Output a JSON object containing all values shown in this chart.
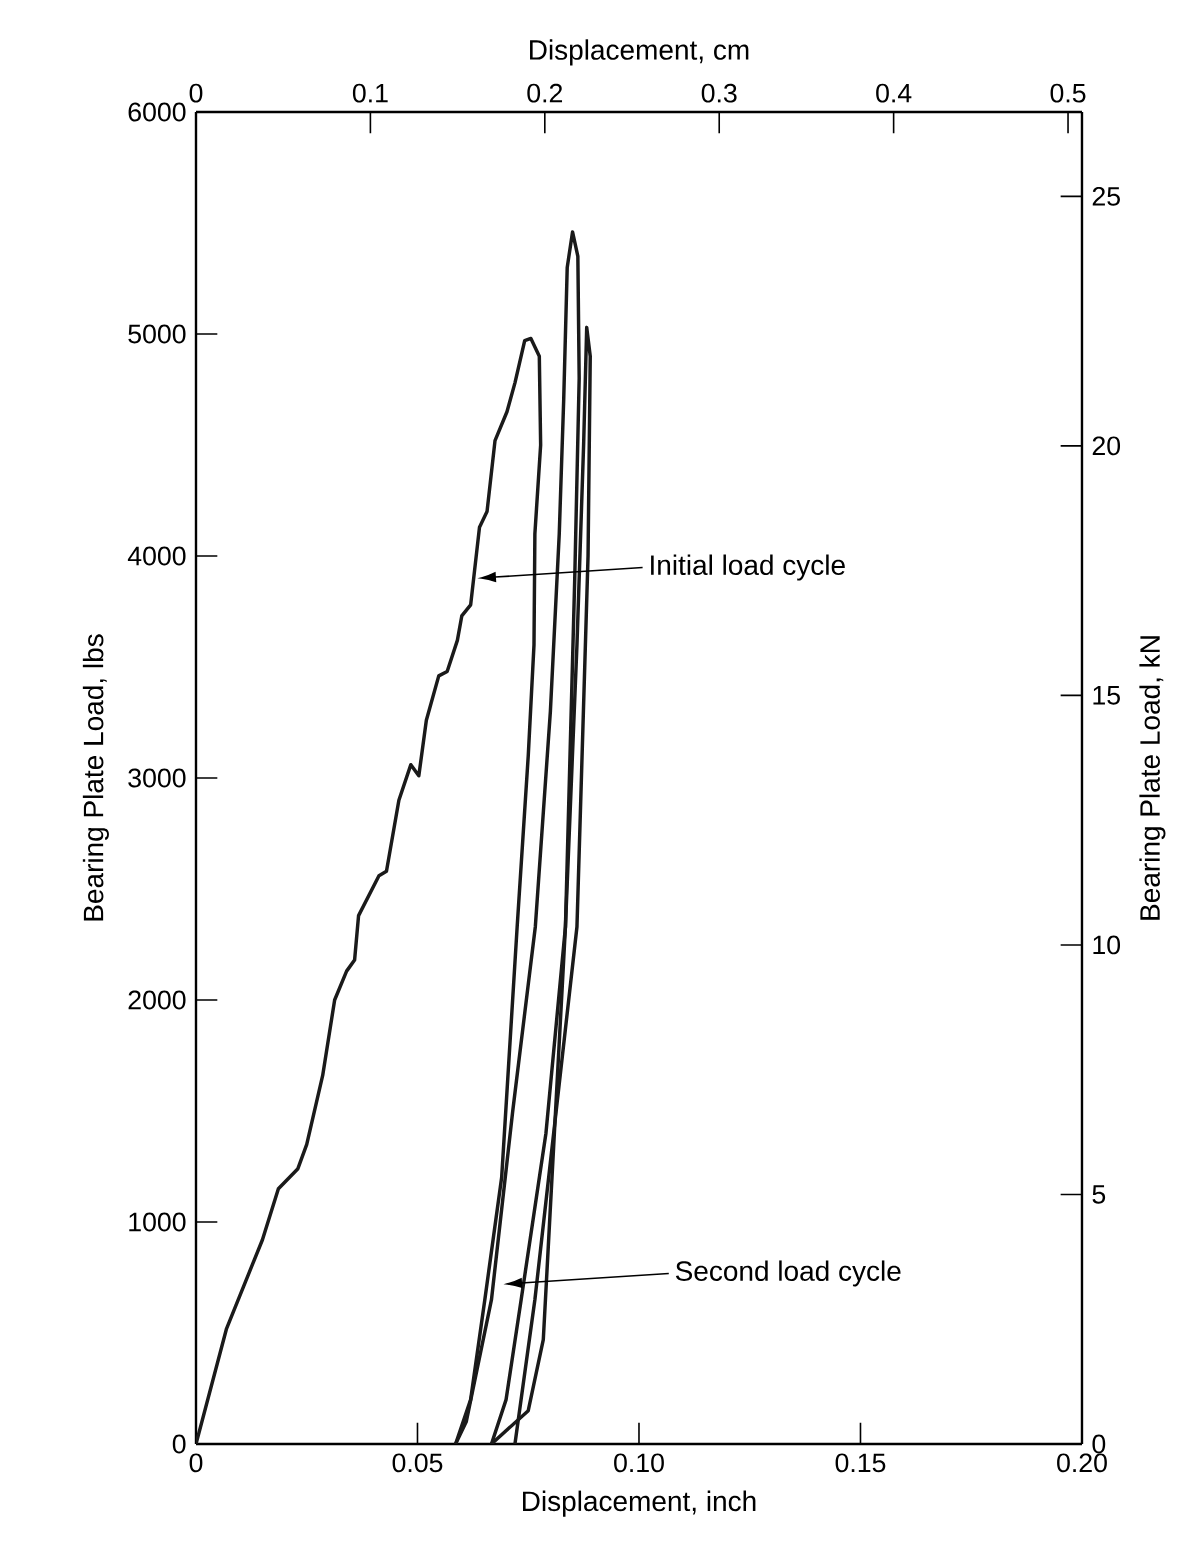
{
  "chart_data": {
    "type": "line",
    "xlabel": "Displacement, inch",
    "ylabel": "Bearing Plate Load, lbs",
    "x2label": "Displacement, cm",
    "y2label": "Bearing Plate Load, kN",
    "xlim": [
      0,
      0.2
    ],
    "xticks": [
      0,
      0.05,
      {
        "value": 0.1,
        "label": "0.10"
      },
      0.15,
      {
        "value": 0.2,
        "label": "0.20"
      }
    ],
    "ylim": [
      0,
      6000
    ],
    "yticks": [
      0,
      1000,
      2000,
      3000,
      4000,
      5000,
      6000
    ],
    "x2lim": [
      0,
      0.508
    ],
    "x2ticks": [
      0,
      0.1,
      0.2,
      0.3,
      0.4,
      0.5
    ],
    "y2lim": [
      0,
      26.69
    ],
    "y2ticks": [
      0,
      5,
      10,
      15,
      20,
      25
    ],
    "grid": false,
    "marker": "none",
    "line_style": "solid",
    "series": [
      {
        "color": "#1a1a1a",
        "x": [
          0,
          0.0069,
          0.015,
          0.0186,
          0.023,
          0.025,
          0.0286,
          0.0313,
          0.034,
          0.0358,
          0.0367,
          0.0413,
          0.043,
          0.0458,
          0.0485,
          0.0503,
          0.052,
          0.0548,
          0.0567,
          0.059,
          0.06,
          0.062,
          0.064,
          0.0657,
          0.0675,
          0.0702,
          0.072,
          0.0742,
          0.0756,
          0.0775,
          0.0778,
          0.0765,
          0.0763,
          0.075,
          0.0725,
          0.069,
          0.0652,
          0.062,
          0.0586
        ],
        "values": [
          0,
          520,
          920,
          1150,
          1240,
          1350,
          1660,
          2000,
          2130,
          2180,
          2380,
          2560,
          2580,
          2900,
          3060,
          3010,
          3260,
          3460,
          3480,
          3620,
          3730,
          3780,
          4130,
          4200,
          4520,
          4650,
          4780,
          4970,
          4980,
          4900,
          4500,
          4100,
          3600,
          3100,
          2330,
          1200,
          650,
          200,
          0
        ]
      },
      {
        "color": "#1a1a1a",
        "x": [
          0.0586,
          0.061,
          0.0667,
          0.0715,
          0.0766,
          0.08,
          0.082,
          0.083,
          0.0838,
          0.085,
          0.0862,
          0.0865,
          0.0855,
          0.0834,
          0.0784,
          0.075,
          0.0667
        ],
        "values": [
          0,
          100,
          650,
          1500,
          2330,
          3300,
          4100,
          4700,
          5300,
          5460,
          5350,
          4800,
          3900,
          2330,
          470,
          150,
          0
        ]
      },
      {
        "color": "#1a1a1a",
        "x": [
          0.0667,
          0.07,
          0.0734,
          0.079,
          0.0834,
          0.086,
          0.0875,
          0.0882,
          0.089,
          0.0885,
          0.086,
          0.0765,
          0.072
        ],
        "values": [
          0,
          200,
          650,
          1400,
          2330,
          3600,
          4500,
          5030,
          4900,
          4000,
          2330,
          650,
          0
        ]
      }
    ],
    "annotations": [
      {
        "text": "Initial load cycle",
        "x": 0.0635,
        "y": 3900
      },
      {
        "text": "Second load cycle",
        "x": 0.0694,
        "y": 720
      }
    ]
  }
}
